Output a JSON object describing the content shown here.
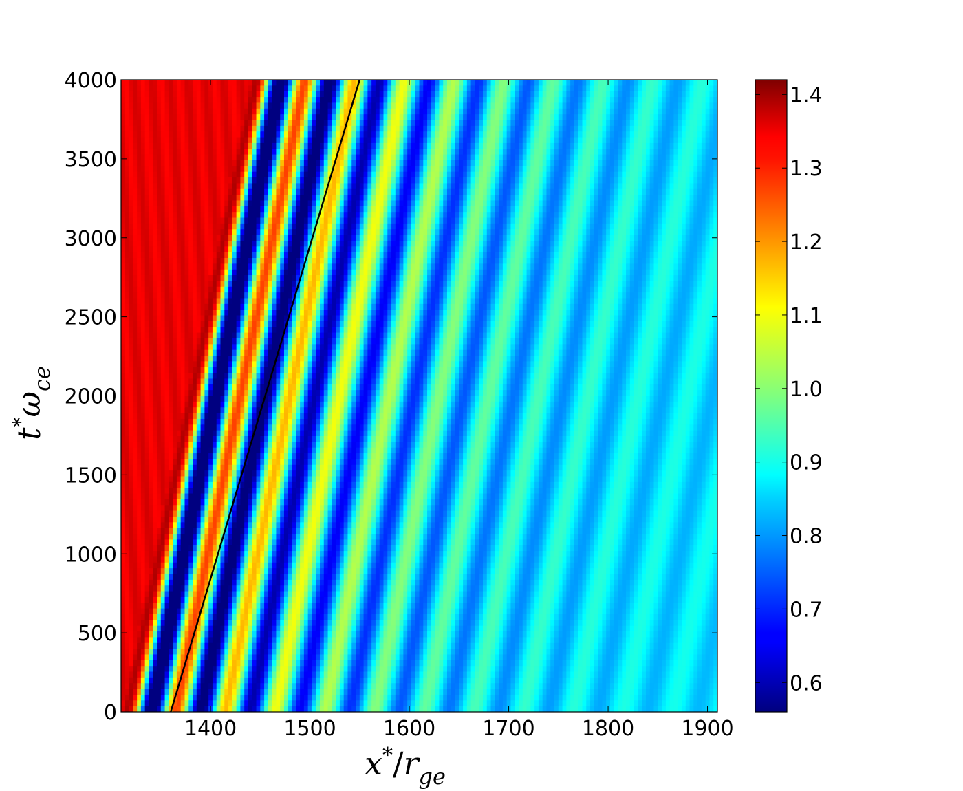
{
  "chart_data": {
    "type": "heatmap",
    "xlabel": "x*/r_ge",
    "ylabel": "t*ω_ce",
    "xlim": [
      1310,
      1910
    ],
    "ylim": [
      0,
      4000
    ],
    "x_ticks": [
      "1400",
      "1500",
      "1600",
      "1700",
      "1800",
      "1900"
    ],
    "y_ticks": [
      "0",
      "500",
      "1000",
      "1500",
      "2000",
      "2500",
      "3000",
      "3500",
      "4000"
    ],
    "colorbar": {
      "colormap": "jet",
      "range": [
        0.56,
        1.42
      ],
      "ticks": [
        "0.6",
        "0.7",
        "0.8",
        "0.9",
        "1.0",
        "1.1",
        "1.2",
        "1.3",
        "1.4"
      ]
    },
    "field_description": {
      "upstream_level": 1.33,
      "downstream_level": 0.86,
      "front_x_at_t0": 1310,
      "front_x_at_t4000": 1440,
      "wave_speed_slope_dx_dt": 0.047,
      "wavelength": 50
    },
    "overlay_line": {
      "color": "#000000",
      "points": [
        [
          1360,
          0
        ],
        [
          1550,
          4000
        ]
      ]
    }
  }
}
